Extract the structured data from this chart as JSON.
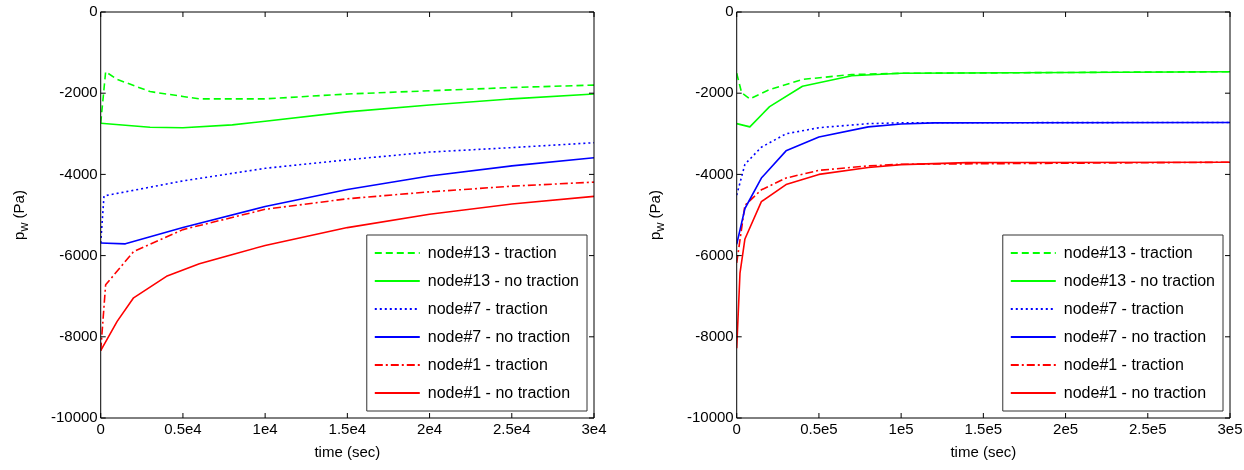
{
  "chart_data": [
    {
      "type": "line",
      "xlabel": "time (sec)",
      "ylabel": "p$_{w}$ (Pa)",
      "xlim": [
        0,
        30000
      ],
      "ylim": [
        -10000,
        0
      ],
      "xticks": [
        0,
        {
          "value": 5000,
          "label": "0.5e4"
        },
        {
          "value": 10000,
          "label": "1e4"
        },
        {
          "value": 15000,
          "label": "1.5e4"
        },
        {
          "value": 20000,
          "label": "2e4"
        },
        {
          "value": 25000,
          "label": "2.5e4"
        },
        {
          "value": 30000,
          "label": "3e4"
        }
      ],
      "yticks": [
        -10000,
        -8000,
        -6000,
        -4000,
        -2000,
        0
      ],
      "grid": false,
      "legend": "bottom right",
      "marker": "none",
      "series": [
        {
          "name": "node#13 - traction",
          "color": "#00ff00",
          "line_style": "dashed",
          "x": [
            0,
            300,
            1000,
            3000,
            5000,
            6000,
            10000,
            15000,
            20000,
            25000,
            30000
          ],
          "values": [
            -2740,
            -1470,
            -1660,
            -1960,
            -2080,
            -2140,
            -2140,
            -2020,
            -1940,
            -1860,
            -1800
          ]
        },
        {
          "name": "node#13 - no traction",
          "color": "#00ff00",
          "line_style": "solid",
          "x": [
            0,
            3000,
            5000,
            8000,
            10000,
            15000,
            20000,
            25000,
            30000
          ],
          "values": [
            -2740,
            -2840,
            -2850,
            -2780,
            -2690,
            -2460,
            -2290,
            -2140,
            -2020
          ]
        },
        {
          "name": "node#7 - traction",
          "color": "#0000ff",
          "line_style": "dotted",
          "x": [
            0,
            200,
            5000,
            10000,
            15000,
            20000,
            25000,
            30000
          ],
          "values": [
            -5690,
            -4530,
            -4160,
            -3850,
            -3640,
            -3450,
            -3340,
            -3220
          ]
        },
        {
          "name": "node#7 - no traction",
          "color": "#0000ff",
          "line_style": "solid",
          "x": [
            0,
            1500,
            5000,
            10000,
            15000,
            20000,
            25000,
            30000
          ],
          "values": [
            -5690,
            -5710,
            -5310,
            -4790,
            -4370,
            -4040,
            -3790,
            -3590
          ]
        },
        {
          "name": "node#1 - traction",
          "color": "#ff0000",
          "line_style": "dashdot",
          "x": [
            0,
            300,
            2000,
            5000,
            10000,
            15000,
            20000,
            25000,
            30000
          ],
          "values": [
            -8340,
            -6720,
            -5900,
            -5360,
            -4860,
            -4600,
            -4430,
            -4290,
            -4190
          ]
        },
        {
          "name": "node#1 - no traction",
          "color": "#ff0000",
          "line_style": "solid",
          "x": [
            0,
            1000,
            2000,
            4000,
            6000,
            10000,
            15000,
            20000,
            25000,
            30000
          ],
          "values": [
            -8340,
            -7620,
            -7040,
            -6510,
            -6200,
            -5750,
            -5310,
            -4980,
            -4730,
            -4540
          ]
        }
      ]
    },
    {
      "type": "line",
      "xlabel": "time (sec)",
      "ylabel": "p$_{w}$ (Pa)",
      "xlim": [
        0,
        300000
      ],
      "ylim": [
        -10000,
        0
      ],
      "xticks": [
        0,
        {
          "value": 50000,
          "label": "0.5e5"
        },
        {
          "value": 100000,
          "label": "1e5"
        },
        {
          "value": 150000,
          "label": "1.5e5"
        },
        {
          "value": 200000,
          "label": "2e5"
        },
        {
          "value": 250000,
          "label": "2.5e5"
        },
        {
          "value": 300000,
          "label": "3e5"
        }
      ],
      "yticks": [
        -10000,
        -8000,
        -6000,
        -4000,
        -2000,
        0
      ],
      "grid": false,
      "legend": "bottom right",
      "marker": "none",
      "series": [
        {
          "name": "node#13 - traction",
          "color": "#00ff00",
          "line_style": "dashed",
          "x": [
            0,
            3000,
            8000,
            20000,
            40000,
            70000,
            100000,
            300000
          ],
          "values": [
            -1510,
            -1990,
            -2140,
            -1910,
            -1660,
            -1540,
            -1510,
            -1470
          ]
        },
        {
          "name": "node#13 - no traction",
          "color": "#00ff00",
          "line_style": "solid",
          "x": [
            0,
            8000,
            20000,
            40000,
            70000,
            100000,
            300000
          ],
          "values": [
            -2750,
            -2830,
            -2330,
            -1830,
            -1570,
            -1510,
            -1470
          ]
        },
        {
          "name": "node#7 - traction",
          "color": "#0000ff",
          "line_style": "dotted",
          "x": [
            0,
            5000,
            15000,
            30000,
            50000,
            80000,
            100000,
            300000
          ],
          "values": [
            -4510,
            -3750,
            -3330,
            -3000,
            -2850,
            -2750,
            -2730,
            -2720
          ]
        },
        {
          "name": "node#7 - no traction",
          "color": "#0000ff",
          "line_style": "solid",
          "x": [
            0,
            5000,
            15000,
            30000,
            50000,
            80000,
            100000,
            120000,
            300000
          ],
          "values": [
            -5720,
            -4840,
            -4090,
            -3420,
            -3080,
            -2830,
            -2760,
            -2730,
            -2720
          ]
        },
        {
          "name": "node#1 - traction",
          "color": "#ff0000",
          "line_style": "dashdot",
          "x": [
            0,
            5000,
            15000,
            30000,
            50000,
            80000,
            100000,
            300000
          ],
          "values": [
            -6180,
            -4760,
            -4380,
            -4090,
            -3900,
            -3790,
            -3750,
            -3700
          ]
        },
        {
          "name": "node#1 - no traction",
          "color": "#ff0000",
          "line_style": "solid",
          "x": [
            0,
            2000,
            5000,
            15000,
            30000,
            50000,
            80000,
            100000,
            140000,
            300000
          ],
          "values": [
            -8280,
            -6430,
            -5590,
            -4670,
            -4250,
            -4000,
            -3830,
            -3760,
            -3710,
            -3700
          ]
        }
      ]
    }
  ]
}
